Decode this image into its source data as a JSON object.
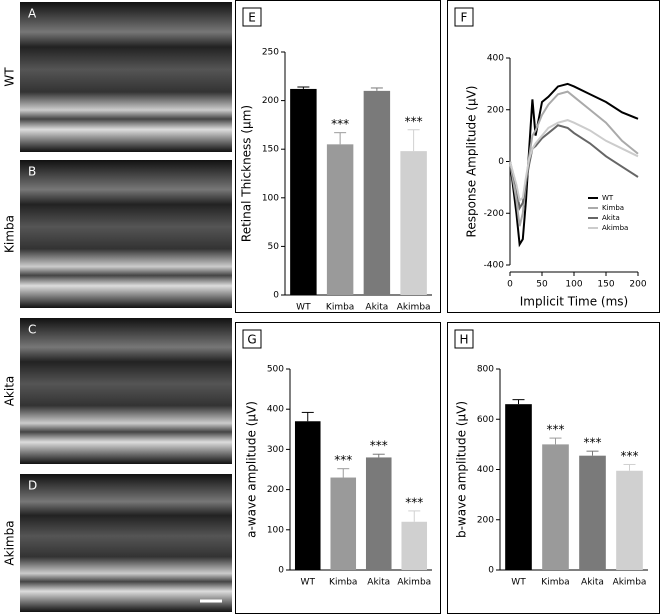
{
  "images": [
    {
      "letter": "A",
      "label": "WT"
    },
    {
      "letter": "B",
      "label": "Kimba"
    },
    {
      "letter": "C",
      "label": "Akita"
    },
    {
      "letter": "D",
      "label": "Akimba"
    }
  ],
  "chart_data": [
    {
      "type": "bar",
      "panel": "E",
      "ylabel": "Retinal Thickness (µm)",
      "categories": [
        "WT",
        "Kimba",
        "Akita",
        "Akimba"
      ],
      "values": [
        212,
        155,
        210,
        148
      ],
      "errors": [
        2,
        12,
        3,
        22
      ],
      "colors": [
        "#000000",
        "#9a9a9a",
        "#7a7a7a",
        "#d0d0d0"
      ],
      "annotations": [
        null,
        "***",
        null,
        "***"
      ],
      "ylim": [
        0,
        250
      ],
      "yticks": [
        0,
        50,
        100,
        150,
        200,
        250
      ]
    },
    {
      "type": "line",
      "panel": "F",
      "xlabel": "Implicit Time (ms)",
      "ylabel": "Response Amplitude (µV)",
      "x": [
        0,
        10,
        15,
        20,
        25,
        30,
        35,
        40,
        50,
        60,
        75,
        90,
        100,
        125,
        150,
        175,
        200
      ],
      "series": [
        {
          "name": "WT",
          "color": "#000000",
          "values": [
            0,
            -200,
            -320,
            -300,
            -150,
            50,
            240,
            100,
            230,
            250,
            290,
            300,
            290,
            260,
            230,
            190,
            165
          ]
        },
        {
          "name": "Kimba",
          "color": "#aaaaaa",
          "values": [
            0,
            -150,
            -250,
            -200,
            -80,
            20,
            100,
            120,
            180,
            220,
            260,
            270,
            250,
            200,
            150,
            80,
            30
          ]
        },
        {
          "name": "Akita",
          "color": "#666666",
          "values": [
            0,
            -100,
            -180,
            -160,
            -80,
            -10,
            50,
            60,
            90,
            110,
            140,
            130,
            110,
            70,
            20,
            -20,
            -60
          ]
        },
        {
          "name": "Akimba",
          "color": "#cccccc",
          "values": [
            0,
            -90,
            -150,
            -140,
            -60,
            10,
            50,
            70,
            100,
            130,
            150,
            160,
            150,
            120,
            80,
            50,
            20
          ]
        }
      ],
      "xlim": [
        0,
        200
      ],
      "xticks": [
        0,
        50,
        100,
        150,
        200
      ],
      "ylim": [
        -400,
        400
      ],
      "yticks": [
        -400,
        -200,
        0,
        200,
        400
      ],
      "legend": "right"
    },
    {
      "type": "bar",
      "panel": "G",
      "ylabel": "a-wave amplitude (µV)",
      "categories": [
        "WT",
        "Kimba",
        "Akita",
        "Akimba"
      ],
      "values": [
        370,
        230,
        280,
        120
      ],
      "errors": [
        22,
        22,
        8,
        27
      ],
      "colors": [
        "#000000",
        "#9a9a9a",
        "#7a7a7a",
        "#d0d0d0"
      ],
      "annotations": [
        null,
        "***",
        "***",
        "***"
      ],
      "ylim": [
        0,
        500
      ],
      "yticks": [
        0,
        100,
        200,
        300,
        400,
        500
      ]
    },
    {
      "type": "bar",
      "panel": "H",
      "ylabel": "b-wave amplitude (µV)",
      "categories": [
        "WT",
        "Kimba",
        "Akita",
        "Akimba"
      ],
      "values": [
        660,
        500,
        455,
        395
      ],
      "errors": [
        18,
        25,
        18,
        25
      ],
      "colors": [
        "#000000",
        "#9a9a9a",
        "#7a7a7a",
        "#d0d0d0"
      ],
      "annotations": [
        null,
        "***",
        "***",
        "***"
      ],
      "ylim": [
        0,
        800
      ],
      "yticks": [
        0,
        200,
        400,
        600,
        800
      ]
    }
  ]
}
